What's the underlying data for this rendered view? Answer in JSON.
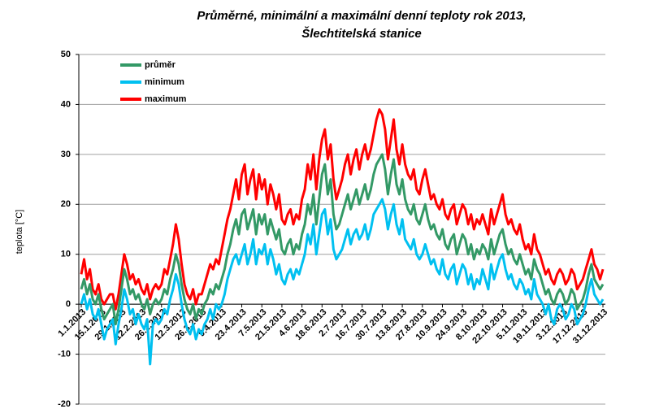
{
  "chart_data": {
    "type": "line",
    "title": "Průměrné, minimální a maximální denní teploty rok 2013,",
    "subtitle": "Šlechtitelská stanice",
    "y_label": "teplota [°C]",
    "ylim": [
      -20,
      50
    ],
    "yticks": [
      -20,
      -10,
      0,
      10,
      20,
      30,
      40,
      50
    ],
    "grid": true,
    "legend": "top-left",
    "categories": [
      "1.1.2013",
      null,
      null,
      null,
      null,
      null,
      null,
      "15.1.2013",
      null,
      null,
      null,
      null,
      null,
      null,
      "29.1.2013",
      null,
      null,
      null,
      null,
      null,
      null,
      "12.2.2013",
      null,
      null,
      null,
      null,
      null,
      null,
      "26.2.2013",
      null,
      null,
      null,
      null,
      null,
      null,
      "12.3.2013",
      null,
      null,
      null,
      null,
      null,
      null,
      "26.3.2013",
      null,
      null,
      null,
      null,
      null,
      null,
      "9.4.2013",
      null,
      null,
      null,
      null,
      null,
      null,
      "23.4.2013",
      null,
      null,
      null,
      null,
      null,
      null,
      "7.5.2013",
      null,
      null,
      null,
      null,
      null,
      null,
      "21.5.2013",
      null,
      null,
      null,
      null,
      null,
      null,
      "4.6.2013",
      null,
      null,
      null,
      null,
      null,
      null,
      "18.6.2013",
      null,
      null,
      null,
      null,
      null,
      null,
      "2.7.2013",
      null,
      null,
      null,
      null,
      null,
      null,
      "16.7.2013",
      null,
      null,
      null,
      null,
      null,
      null,
      "30.7.2013",
      null,
      null,
      null,
      null,
      null,
      null,
      "13.8.2013",
      null,
      null,
      null,
      null,
      null,
      null,
      "27.8.2013",
      null,
      null,
      null,
      null,
      null,
      null,
      "10.9.2013",
      null,
      null,
      null,
      null,
      null,
      null,
      "24.9.2013",
      null,
      null,
      null,
      null,
      null,
      null,
      "8.10.2013",
      null,
      null,
      null,
      null,
      null,
      null,
      "22.10.2013",
      null,
      null,
      null,
      null,
      null,
      null,
      "5.11.2013",
      null,
      null,
      null,
      null,
      null,
      null,
      "19.11.2013",
      null,
      null,
      null,
      null,
      null,
      null,
      "3.12.2013",
      null,
      null,
      null,
      null,
      null,
      null,
      "17.12.2013",
      null,
      null,
      null,
      null,
      null,
      null,
      "31.12.2013"
    ],
    "series": [
      {
        "name": "průměr",
        "color": "#339966",
        "values": [
          3,
          5,
          2,
          4,
          1,
          0,
          2,
          -1,
          -3,
          -2,
          -1,
          0,
          -4,
          -1,
          3,
          7,
          5,
          2,
          3,
          1,
          2,
          0,
          -1,
          1,
          -2,
          0,
          1,
          0,
          1,
          3,
          2,
          5,
          7,
          10,
          8,
          4,
          1,
          -1,
          -2,
          0,
          -3,
          -1,
          -2,
          0,
          1,
          3,
          2,
          4,
          3,
          5,
          7,
          10,
          12,
          15,
          17,
          14,
          18,
          19,
          15,
          17,
          19,
          14,
          18,
          16,
          18,
          14,
          17,
          15,
          13,
          15,
          11,
          10,
          12,
          13,
          10,
          12,
          11,
          14,
          16,
          20,
          18,
          22,
          16,
          21,
          26,
          28,
          22,
          25,
          18,
          15,
          16,
          18,
          20,
          22,
          19,
          21,
          23,
          20,
          22,
          24,
          21,
          23,
          26,
          28,
          29,
          30,
          27,
          22,
          26,
          29,
          24,
          22,
          25,
          21,
          19,
          18,
          20,
          17,
          16,
          18,
          20,
          17,
          15,
          16,
          14,
          13,
          15,
          12,
          11,
          13,
          14,
          10,
          12,
          14,
          13,
          10,
          12,
          9,
          11,
          10,
          12,
          11,
          9,
          13,
          10,
          12,
          14,
          15,
          12,
          10,
          11,
          9,
          8,
          10,
          8,
          6,
          7,
          5,
          9,
          7,
          6,
          4,
          2,
          3,
          1,
          0,
          2,
          3,
          2,
          0,
          1,
          3,
          2,
          -1,
          0,
          1,
          3,
          6,
          8,
          5,
          4,
          3,
          4
        ]
      },
      {
        "name": "minimum",
        "color": "#00c0f0",
        "values": [
          0,
          2,
          -1,
          1,
          -2,
          -3,
          -1,
          -4,
          -7,
          -5,
          -4,
          -3,
          -8,
          -4,
          -1,
          3,
          1,
          -2,
          -1,
          -4,
          -2,
          -4,
          -5,
          -3,
          -12,
          -4,
          -3,
          -4,
          -3,
          -1,
          -2,
          1,
          3,
          6,
          4,
          0,
          -3,
          -5,
          -6,
          -4,
          -7,
          -5,
          -6,
          -4,
          -3,
          -1,
          -3,
          0,
          -1,
          0,
          2,
          5,
          7,
          9,
          10,
          8,
          10,
          12,
          8,
          10,
          13,
          8,
          11,
          10,
          12,
          8,
          11,
          9,
          6,
          8,
          5,
          4,
          6,
          7,
          5,
          7,
          6,
          8,
          10,
          14,
          12,
          16,
          10,
          14,
          18,
          19,
          14,
          17,
          11,
          9,
          10,
          11,
          13,
          15,
          12,
          14,
          15,
          13,
          14,
          16,
          13,
          15,
          18,
          19,
          20,
          21,
          19,
          15,
          18,
          20,
          16,
          14,
          17,
          13,
          12,
          11,
          13,
          10,
          9,
          10,
          12,
          10,
          8,
          9,
          7,
          6,
          9,
          6,
          5,
          7,
          8,
          4,
          6,
          8,
          7,
          4,
          6,
          3,
          5,
          4,
          7,
          5,
          3,
          8,
          5,
          7,
          9,
          10,
          7,
          5,
          6,
          4,
          3,
          5,
          4,
          2,
          3,
          1,
          5,
          2,
          1,
          0,
          -2,
          0,
          -3,
          -4,
          -1,
          0,
          -1,
          -3,
          -2,
          0,
          -1,
          -4,
          -3,
          -2,
          0,
          3,
          5,
          2,
          1,
          0,
          1
        ]
      },
      {
        "name": "maximum",
        "color": "#ff0000",
        "values": [
          6,
          9,
          5,
          7,
          3,
          2,
          4,
          1,
          0,
          1,
          2,
          2,
          -1,
          2,
          6,
          10,
          8,
          5,
          6,
          4,
          5,
          3,
          2,
          4,
          1,
          3,
          4,
          3,
          4,
          7,
          6,
          9,
          12,
          16,
          13,
          8,
          4,
          2,
          1,
          3,
          0,
          2,
          2,
          4,
          6,
          8,
          7,
          9,
          8,
          11,
          14,
          17,
          19,
          22,
          25,
          21,
          26,
          28,
          22,
          25,
          27,
          21,
          26,
          23,
          25,
          20,
          24,
          22,
          19,
          22,
          17,
          16,
          18,
          19,
          16,
          18,
          17,
          21,
          23,
          28,
          25,
          30,
          23,
          29,
          33,
          35,
          29,
          32,
          25,
          21,
          23,
          25,
          28,
          30,
          26,
          29,
          31,
          27,
          30,
          32,
          29,
          31,
          34,
          37,
          39,
          38,
          35,
          29,
          33,
          37,
          31,
          28,
          32,
          28,
          26,
          25,
          27,
          23,
          22,
          25,
          27,
          24,
          21,
          22,
          20,
          19,
          21,
          18,
          17,
          19,
          20,
          16,
          18,
          20,
          19,
          16,
          18,
          15,
          17,
          16,
          18,
          16,
          14,
          19,
          16,
          18,
          20,
          22,
          18,
          16,
          17,
          15,
          14,
          16,
          13,
          11,
          12,
          10,
          14,
          11,
          10,
          8,
          6,
          7,
          5,
          4,
          6,
          7,
          6,
          4,
          5,
          7,
          6,
          3,
          4,
          5,
          7,
          9,
          11,
          8,
          7,
          5,
          7
        ]
      }
    ]
  }
}
